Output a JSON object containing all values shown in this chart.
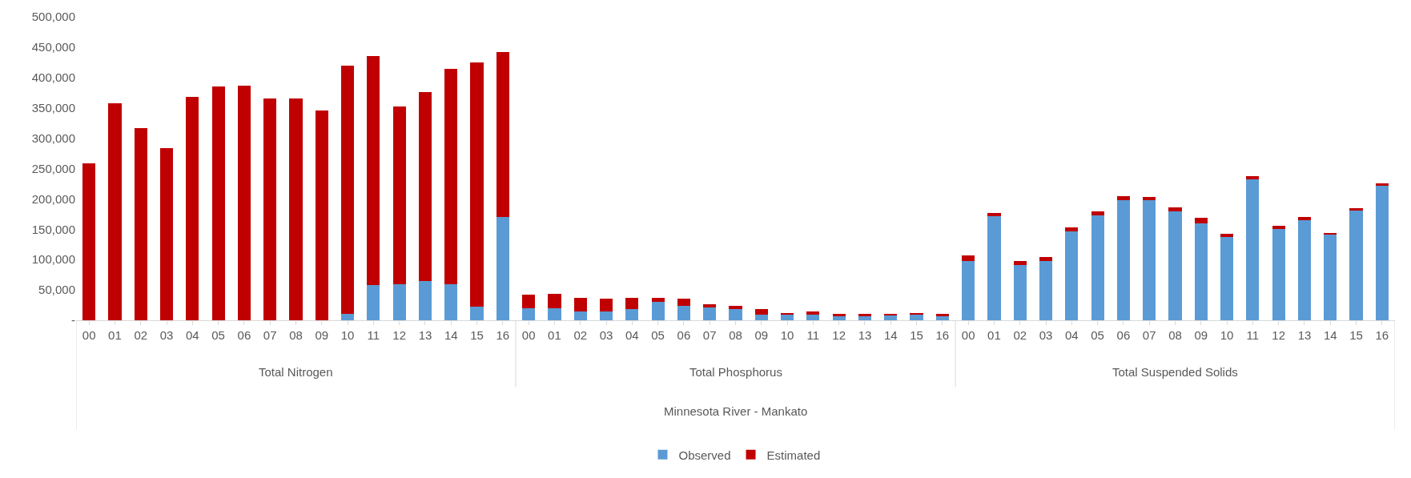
{
  "chart_data": {
    "type": "bar",
    "stacked": true,
    "categories": [
      "00",
      "01",
      "02",
      "03",
      "04",
      "05",
      "06",
      "07",
      "08",
      "09",
      "10",
      "11",
      "12",
      "13",
      "14",
      "15",
      "16",
      "00",
      "01",
      "02",
      "03",
      "04",
      "05",
      "06",
      "07",
      "08",
      "09",
      "10",
      "11",
      "12",
      "13",
      "14",
      "15",
      "16",
      "00",
      "01",
      "02",
      "03",
      "04",
      "05",
      "06",
      "07",
      "08",
      "09",
      "10",
      "11",
      "12",
      "13",
      "14",
      "15",
      "16"
    ],
    "series": [
      {
        "name": "Observed",
        "color": "#5b9bd5",
        "values": [
          0,
          0,
          0,
          0,
          0,
          0,
          0,
          0,
          0,
          0,
          10000,
          58000,
          60000,
          65000,
          60000,
          23000,
          170000,
          20000,
          20000,
          15000,
          15000,
          18000,
          31000,
          24000,
          21000,
          19000,
          9000,
          9000,
          9000,
          6000,
          7000,
          8000,
          10000,
          7000,
          97000,
          171000,
          91000,
          97000,
          146000,
          173000,
          198000,
          198000,
          180000,
          160000,
          137000,
          232000,
          151000,
          165000,
          141000,
          181000,
          222000
        ]
      },
      {
        "name": "Estimated",
        "color": "#c00000",
        "values": [
          259000,
          357000,
          316000,
          284000,
          368000,
          385000,
          387000,
          365000,
          365000,
          345000,
          410000,
          378000,
          292000,
          311000,
          354000,
          402000,
          272000,
          22000,
          23000,
          22000,
          20000,
          19000,
          6000,
          11000,
          6000,
          5000,
          9000,
          3000,
          5000,
          4000,
          3000,
          2000,
          2000,
          3000,
          10000,
          6000,
          7000,
          7000,
          7000,
          6000,
          7000,
          5000,
          6000,
          9000,
          5000,
          5000,
          5000,
          5000,
          3000,
          4000,
          4000
        ]
      }
    ],
    "ylim": [
      0,
      500000
    ],
    "yticks": [
      {
        "value": 0,
        "label": "-"
      },
      {
        "value": 50000,
        "label": "50,000"
      },
      {
        "value": 100000,
        "label": "100,000"
      },
      {
        "value": 150000,
        "label": "150,000"
      },
      {
        "value": 200000,
        "label": "200,000"
      },
      {
        "value": 250000,
        "label": "250,000"
      },
      {
        "value": 300000,
        "label": "300,000"
      },
      {
        "value": 350000,
        "label": "350,000"
      },
      {
        "value": 400000,
        "label": "400,000"
      },
      {
        "value": 450000,
        "label": "450,000"
      },
      {
        "value": 500000,
        "label": "500,000"
      }
    ],
    "grid": false,
    "legend": "bottom",
    "annotations": [
      "Total Nitrogen",
      "Total Phosphorus",
      "Total Suspended Solids",
      "Minnesota River - Mankato"
    ]
  }
}
